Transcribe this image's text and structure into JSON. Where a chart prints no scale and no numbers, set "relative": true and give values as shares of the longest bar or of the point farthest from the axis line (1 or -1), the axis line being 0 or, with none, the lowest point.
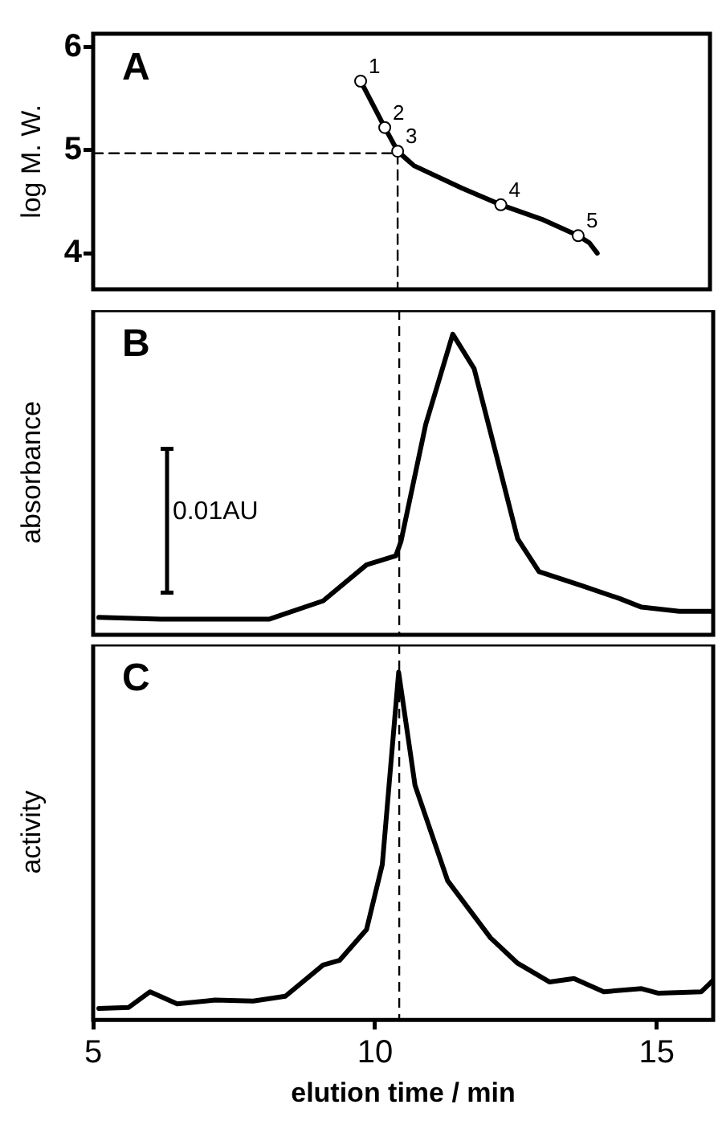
{
  "chart_data": [
    {
      "type": "line",
      "title": "A",
      "ylabel": "log M. W.",
      "xlim": [
        5,
        16
      ],
      "xticks": [
        5,
        10,
        15
      ],
      "ylim": [
        3.65,
        6.13
      ],
      "yticks": [
        4,
        5,
        6
      ],
      "tick_labels": "y",
      "series": [
        {
          "color": "#000000",
          "marker": "none",
          "x": [
            9.77,
            10.2,
            10.43,
            10.72,
            11.58,
            12.27,
            13.0,
            13.65,
            13.85,
            13.99
          ],
          "values": [
            5.67,
            5.22,
            4.99,
            4.85,
            4.63,
            4.47,
            4.33,
            4.17,
            4.1,
            4.0
          ]
        },
        {
          "type": "scatter",
          "color": "#000000",
          "marker": "circle",
          "x": [
            9.77,
            10.2,
            10.43,
            12.27,
            13.65
          ],
          "values": [
            5.67,
            5.22,
            4.99,
            4.47,
            4.17
          ]
        },
        {
          "color": "#000000",
          "marker": "none",
          "line_style": "dashed",
          "x": [
            5,
            10.43,
            10.43
          ],
          "values": [
            4.97,
            4.97,
            3.65
          ]
        }
      ],
      "annotations": [
        {
          "text": "1",
          "x": 9.77,
          "y": 5.67
        },
        {
          "text": "2",
          "x": 10.2,
          "y": 5.22
        },
        {
          "text": "3",
          "x": 10.43,
          "y": 4.99
        },
        {
          "text": "4",
          "x": 12.27,
          "y": 4.47
        },
        {
          "text": "5",
          "x": 13.65,
          "y": 4.17
        }
      ]
    },
    {
      "type": "line",
      "title": "B",
      "ylabel": "absorbance",
      "relative": true,
      "xlim": [
        5,
        16
      ],
      "xticks": [
        5,
        10,
        15
      ],
      "tick_labels": false,
      "series": [
        {
          "color": "#000000",
          "x": [
            5.1,
            6.2,
            8.12,
            9.08,
            9.85,
            10.37,
            10.46,
            10.9,
            11.38,
            11.76,
            12.15,
            12.53,
            12.91,
            13.68,
            14.35,
            14.73,
            15.4,
            16.0
          ],
          "values": [
            0.058,
            0.052,
            0.052,
            0.113,
            0.233,
            0.263,
            0.31,
            0.7,
            1,
            0.885,
            0.6,
            0.32,
            0.21,
            0.163,
            0.12,
            0.092,
            0.078,
            0.078
          ]
        }
      ],
      "ref_lines": [
        {
          "axis": "x",
          "value": 10.43,
          "line_style": "dashed",
          "color": "#000000"
        }
      ],
      "annotations": [
        "0.01AU"
      ]
    },
    {
      "type": "line",
      "ylabel": "activity",
      "title": "C",
      "xlabel": "elution time / min",
      "relative": true,
      "xlim": [
        5,
        16
      ],
      "xticks": [
        5,
        10,
        15
      ],
      "tick_labels": "x",
      "series": [
        {
          "color": "#000000",
          "x": [
            5.1,
            5.63,
            6.01,
            6.49,
            7.16,
            7.84,
            8.41,
            9.08,
            9.37,
            9.85,
            10.13,
            10.42,
            10.71,
            11.29,
            12.05,
            12.53,
            13.1,
            13.53,
            14.06,
            14.73,
            15.02,
            15.79,
            16.0
          ],
          "values": [
            0.033,
            0.036,
            0.081,
            0.046,
            0.057,
            0.054,
            0.068,
            0.158,
            0.171,
            0.26,
            0.447,
            1,
            0.675,
            0.4,
            0.236,
            0.163,
            0.109,
            0.119,
            0.081,
            0.09,
            0.077,
            0.081,
            0.114
          ]
        }
      ],
      "ref_lines": [
        {
          "axis": "x",
          "value": 10.43,
          "line_style": "dashed",
          "color": "#000000"
        }
      ]
    }
  ]
}
